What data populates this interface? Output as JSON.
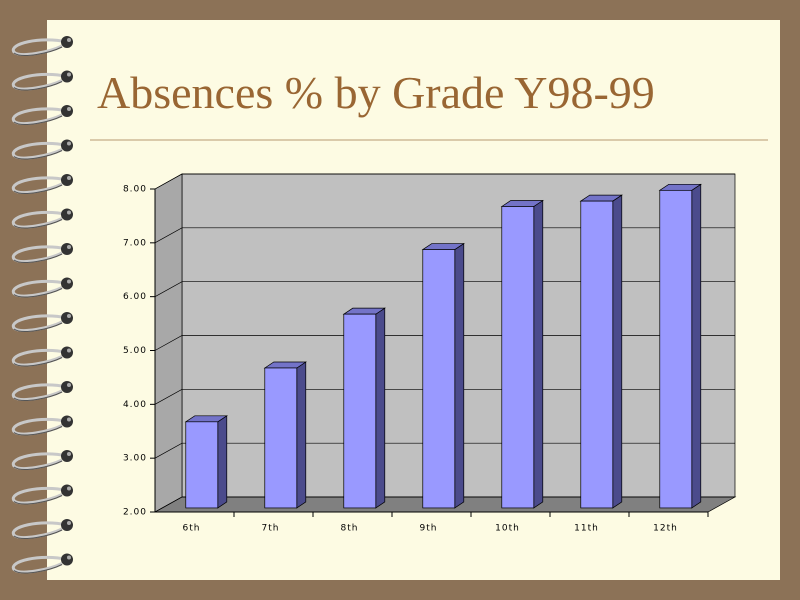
{
  "chart_data": {
    "type": "bar3d",
    "title": "Absences % by Grade Y98-99",
    "categories": [
      "6th",
      "7th",
      "8th",
      "9th",
      "10th",
      "11th",
      "12th"
    ],
    "values": [
      3.6,
      4.6,
      5.6,
      6.8,
      7.6,
      7.7,
      7.9
    ],
    "color": "#9999ff",
    "ylim": [
      2,
      8
    ],
    "yticks": [
      {
        "value": 2,
        "label": "2.00"
      },
      {
        "value": 3,
        "label": "3.00"
      },
      {
        "value": 4,
        "label": "4.00"
      },
      {
        "value": 5,
        "label": "5.00"
      },
      {
        "value": 6,
        "label": "6.00"
      },
      {
        "value": 7,
        "label": "7.00"
      },
      {
        "value": 8,
        "label": "8.00"
      }
    ],
    "grid": true
  }
}
